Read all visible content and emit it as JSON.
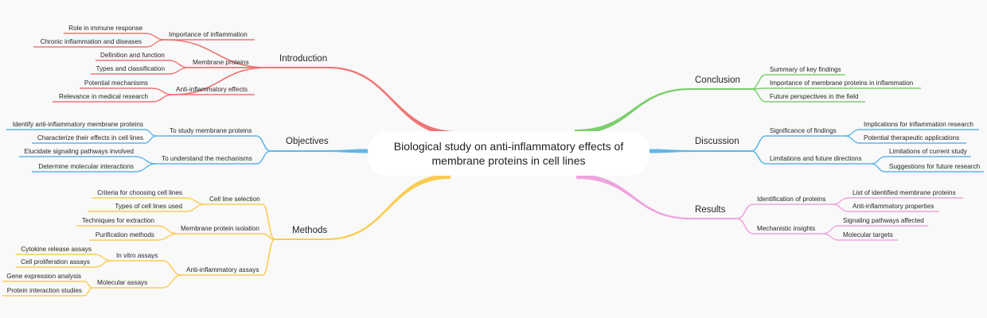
{
  "root": {
    "line1": "Biological study on anti-inflammatory effects of",
    "line2": "membrane proteins in cell lines"
  },
  "colors": {
    "introduction": "#f07575",
    "objectives": "#5fb6e8",
    "methods": "#fbcc52",
    "conclusion": "#7ccf6e",
    "discussion": "#5fb6e8",
    "results": "#eea4dd"
  },
  "introduction": {
    "label": "Introduction",
    "importance": {
      "label": "Importance of inflammation",
      "items": [
        "Role in immune response",
        "Chronic inflammation and diseases"
      ]
    },
    "membrane": {
      "label": "Membrane proteins",
      "items": [
        "Definition and function",
        "Types and classification"
      ]
    },
    "antiinflam": {
      "label": "Anti-inflammatory effects",
      "items": [
        "Potential mechanisms",
        "Relevance in medical research"
      ]
    }
  },
  "objectives": {
    "label": "Objectives",
    "study": {
      "label": "To study membrane proteins",
      "items": [
        "Identify anti-inflammatory membrane proteins",
        "Characterize their effects in cell lines"
      ]
    },
    "understand": {
      "label": "To understand the mechanisms",
      "items": [
        "Elucidate signaling pathways involved",
        "Determine molecular interactions"
      ]
    }
  },
  "methods": {
    "label": "Methods",
    "cellline": {
      "label": "Cell line selection",
      "items": [
        "Criteria for choosing cell lines",
        "Types of cell lines used"
      ]
    },
    "isolation": {
      "label": "Membrane protein isolation",
      "items": [
        "Techniques for extraction",
        "Purification methods"
      ]
    },
    "assays": {
      "label": "Anti-inflammatory assays",
      "invitro": {
        "label": "In vitro assays",
        "items": [
          "Cytokine release assays",
          "Cell proliferation assays"
        ]
      },
      "molecular": {
        "label": "Molecular assays",
        "items": [
          "Gene expression analysis",
          "Protein interaction studies"
        ]
      }
    }
  },
  "conclusion": {
    "label": "Conclusion",
    "items": [
      "Summary of key findings",
      "Importance of membrane proteins in inflammation",
      "Future perspectives in the field"
    ]
  },
  "discussion": {
    "label": "Discussion",
    "significance": {
      "label": "Significance of findings",
      "items": [
        "Implications for inflammation research",
        "Potential therapeutic applications"
      ]
    },
    "limitations": {
      "label": "Limitations and future directions",
      "items": [
        "Limitations of current study",
        "Suggestions for future research"
      ]
    }
  },
  "results": {
    "label": "Results",
    "identification": {
      "label": "Identification of proteins",
      "items": [
        "List of identified membrane proteins",
        "Anti-inflammatory properties"
      ]
    },
    "mechanistic": {
      "label": "Mechanistic insights",
      "items": [
        "Signaling pathways affected",
        "Molecular targets"
      ]
    }
  }
}
